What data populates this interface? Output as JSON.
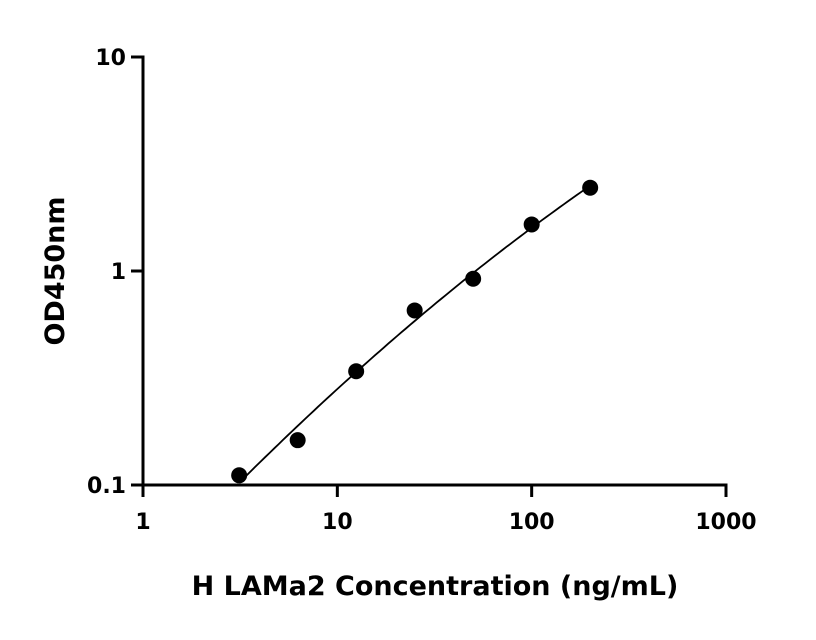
{
  "chart_data": {
    "type": "scatter",
    "title": "",
    "xlabel": "H LAMa2 Concentration (ng/mL)",
    "ylabel": "OD450nm",
    "x_scale": "log",
    "y_scale": "log",
    "xlim": [
      1,
      1000
    ],
    "ylim": [
      0.1,
      10
    ],
    "x_ticks": [
      "1",
      "10",
      "100",
      "1000"
    ],
    "y_ticks": [
      "0.1",
      "1",
      "10"
    ],
    "grid": false,
    "fit_curve": true,
    "colors": {
      "points": "#000000",
      "curve": "#000000"
    },
    "series": [
      {
        "x": [
          3.125,
          6.25,
          12.5,
          25,
          50,
          100,
          200
        ],
        "y": [
          0.111,
          0.162,
          0.34,
          0.654,
          0.92,
          1.65,
          2.45
        ]
      }
    ]
  }
}
